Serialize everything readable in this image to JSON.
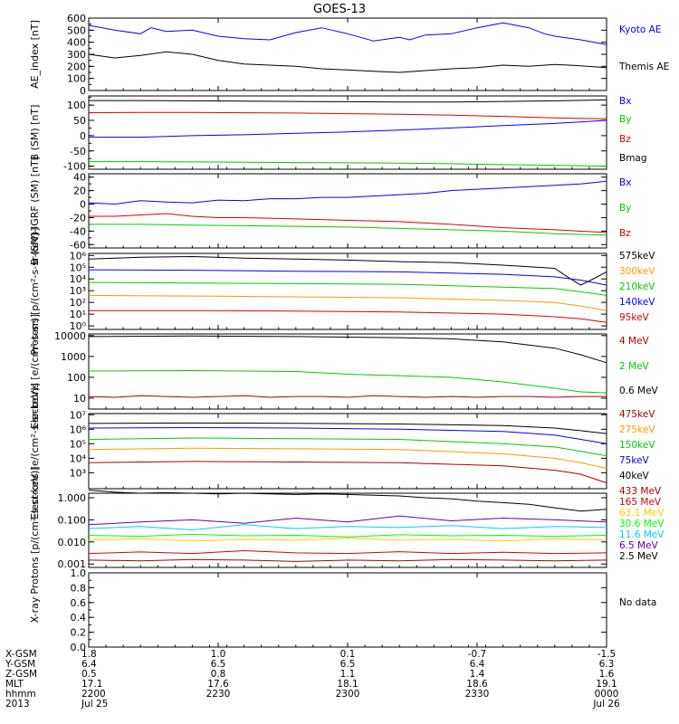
{
  "title": "GOES-13",
  "panels": [
    {
      "ylabel": "AE_index [nT]",
      "yscale": "linear",
      "ylim": [
        0,
        600
      ],
      "ticks": [
        "0",
        "100",
        "200",
        "300",
        "400",
        "500",
        "600"
      ],
      "series": [
        {
          "name": "Kyoto AE",
          "color": "#0000ff",
          "x": [
            0,
            0.05,
            0.1,
            0.12,
            0.15,
            0.2,
            0.25,
            0.3,
            0.35,
            0.4,
            0.45,
            0.5,
            0.55,
            0.6,
            0.62,
            0.65,
            0.7,
            0.75,
            0.8,
            0.85,
            0.88,
            0.9,
            0.95,
            1.0
          ],
          "y": [
            540,
            500,
            470,
            520,
            490,
            500,
            450,
            430,
            420,
            480,
            520,
            470,
            410,
            440,
            420,
            460,
            470,
            520,
            560,
            520,
            470,
            450,
            420,
            380
          ]
        },
        {
          "name": "Themis AE",
          "color": "#000000",
          "x": [
            0,
            0.05,
            0.1,
            0.15,
            0.2,
            0.25,
            0.3,
            0.35,
            0.4,
            0.45,
            0.5,
            0.55,
            0.6,
            0.65,
            0.7,
            0.75,
            0.8,
            0.85,
            0.9,
            0.95,
            1.0
          ],
          "y": [
            300,
            270,
            290,
            320,
            300,
            250,
            220,
            210,
            200,
            180,
            170,
            160,
            150,
            165,
            180,
            190,
            210,
            200,
            215,
            205,
            190
          ]
        }
      ]
    },
    {
      "ylabel": "B (SM) [nT]",
      "yscale": "linear",
      "ylim": [
        -110,
        130
      ],
      "ticks": [
        "-100",
        "-50",
        "0",
        "50",
        "100"
      ],
      "series": [
        {
          "name": "Bx",
          "color": "#0000ff",
          "x": [
            0,
            0.1,
            0.2,
            0.3,
            0.4,
            0.5,
            0.6,
            0.7,
            0.8,
            0.9,
            1.0
          ],
          "y": [
            -5,
            -5,
            0,
            3,
            8,
            12,
            18,
            25,
            33,
            40,
            50
          ]
        },
        {
          "name": "By",
          "color": "#00cc00",
          "x": [
            0,
            0.1,
            0.2,
            0.3,
            0.4,
            0.5,
            0.6,
            0.7,
            0.8,
            0.9,
            1.0
          ],
          "y": [
            -85,
            -85,
            -86,
            -87,
            -88,
            -89,
            -90,
            -92,
            -95,
            -97,
            -100
          ]
        },
        {
          "name": "Bz",
          "color": "#dd0000",
          "x": [
            0,
            0.1,
            0.2,
            0.3,
            0.4,
            0.5,
            0.6,
            0.7,
            0.8,
            0.9,
            1.0
          ],
          "y": [
            75,
            76,
            76,
            75,
            74,
            72,
            70,
            67,
            63,
            58,
            55
          ]
        },
        {
          "name": "Bmag",
          "color": "#000000",
          "x": [
            0,
            0.1,
            0.2,
            0.3,
            0.4,
            0.5,
            0.6,
            0.7,
            0.8,
            0.9,
            1.0
          ],
          "y": [
            115,
            115,
            114,
            113,
            112,
            111,
            110,
            110,
            112,
            114,
            117
          ]
        }
      ]
    },
    {
      "ylabel": "B (SM)-IGRF (SM) [nT]",
      "yscale": "linear",
      "ylim": [
        -65,
        45
      ],
      "ticks": [
        "-60",
        "-40",
        "-20",
        "0",
        "20",
        "40"
      ],
      "series": [
        {
          "name": "Bx",
          "color": "#0000ff",
          "x": [
            0,
            0.05,
            0.1,
            0.15,
            0.2,
            0.25,
            0.3,
            0.35,
            0.4,
            0.45,
            0.5,
            0.55,
            0.6,
            0.65,
            0.7,
            0.75,
            0.8,
            0.85,
            0.9,
            0.95,
            1.0
          ],
          "y": [
            2,
            0,
            5,
            3,
            2,
            6,
            5,
            8,
            8,
            10,
            10,
            12,
            14,
            16,
            20,
            22,
            24,
            26,
            28,
            30,
            34
          ]
        },
        {
          "name": "By",
          "color": "#00cc00",
          "x": [
            0,
            0.1,
            0.2,
            0.3,
            0.4,
            0.5,
            0.6,
            0.7,
            0.8,
            0.9,
            1.0
          ],
          "y": [
            -30,
            -30,
            -31,
            -32,
            -33,
            -34,
            -36,
            -38,
            -40,
            -44,
            -46
          ]
        },
        {
          "name": "Bz",
          "color": "#dd0000",
          "x": [
            0,
            0.05,
            0.1,
            0.15,
            0.2,
            0.25,
            0.3,
            0.4,
            0.5,
            0.6,
            0.7,
            0.8,
            0.9,
            1.0
          ],
          "y": [
            -18,
            -18,
            -16,
            -14,
            -18,
            -20,
            -20,
            -22,
            -24,
            -26,
            -30,
            -35,
            -38,
            -42
          ]
        }
      ]
    },
    {
      "ylabel": "Protons [p/(cm²-s-sr-keV)]",
      "yscale": "log",
      "ylim": [
        0.5,
        1500000
      ],
      "ticks": [
        "10⁰",
        "10¹",
        "10²",
        "10³",
        "10⁴",
        "10⁵",
        "10⁶"
      ],
      "series": [
        {
          "name": "575keV",
          "color": "#000000",
          "x": [
            0,
            0.1,
            0.2,
            0.3,
            0.4,
            0.5,
            0.6,
            0.7,
            0.8,
            0.9,
            0.92,
            0.95,
            0.97,
            1.0
          ],
          "y": [
            500000,
            700000,
            800000,
            600000,
            500000,
            400000,
            300000,
            250000,
            150000,
            80000,
            20000,
            3000,
            8000,
            40000
          ]
        },
        {
          "name": "300keV",
          "color": "#ff9900",
          "x": [
            0,
            0.2,
            0.4,
            0.6,
            0.8,
            0.9,
            0.95,
            1.0
          ],
          "y": [
            400,
            350,
            300,
            250,
            150,
            100,
            50,
            20
          ]
        },
        {
          "name": "210keV",
          "color": "#00cc00",
          "x": [
            0,
            0.2,
            0.4,
            0.6,
            0.8,
            0.9,
            0.95,
            1.0
          ],
          "y": [
            5000,
            4500,
            4000,
            3500,
            2000,
            1500,
            800,
            400
          ]
        },
        {
          "name": "140keV",
          "color": "#0000ff",
          "x": [
            0,
            0.2,
            0.4,
            0.6,
            0.8,
            0.9,
            0.95,
            1.0
          ],
          "y": [
            60000,
            55000,
            45000,
            40000,
            25000,
            15000,
            8000,
            3000
          ]
        },
        {
          "name": "95keV",
          "color": "#dd0000",
          "x": [
            0,
            0.2,
            0.4,
            0.6,
            0.8,
            0.9,
            0.95,
            1.0
          ],
          "y": [
            20,
            20,
            18,
            15,
            10,
            6,
            4,
            2
          ]
        }
      ]
    },
    {
      "ylabel": "Electrons [e/(cm²-s-sr)]",
      "yscale": "log",
      "ylim": [
        3,
        12000
      ],
      "ticks": [
        "10",
        "100",
        "1000",
        "10000"
      ],
      "series": [
        {
          "name": "4 MeV",
          "color": "#aa0000",
          "x": [
            0,
            0.05,
            0.1,
            0.15,
            0.2,
            0.25,
            0.3,
            0.35,
            0.4,
            0.45,
            0.5,
            0.55,
            0.6,
            0.65,
            0.7,
            0.75,
            0.8,
            0.85,
            0.9,
            0.95,
            1.0
          ],
          "y": [
            12,
            11,
            13,
            12,
            11,
            12,
            13,
            11,
            12,
            12,
            11,
            13,
            12,
            11,
            12,
            11,
            12,
            12,
            11,
            12,
            12
          ]
        },
        {
          "name": "2 MeV",
          "color": "#00cc00",
          "x": [
            0,
            0.2,
            0.4,
            0.5,
            0.6,
            0.7,
            0.8,
            0.9,
            0.95,
            1.0
          ],
          "y": [
            200,
            210,
            190,
            140,
            120,
            100,
            60,
            30,
            20,
            18
          ]
        },
        {
          "name": "0.6 MeV",
          "color": "#000000",
          "x": [
            0,
            0.2,
            0.4,
            0.6,
            0.7,
            0.8,
            0.85,
            0.9,
            0.95,
            1.0
          ],
          "y": [
            9000,
            9500,
            9000,
            8000,
            7000,
            5000,
            3500,
            2500,
            1200,
            500
          ]
        }
      ]
    },
    {
      "ylabel": "Electrons [e/(cm²-s-sr-keV)]",
      "yscale": "log",
      "ylim": [
        80,
        12000000
      ],
      "ticks": [
        "10³",
        "10⁴",
        "10⁵",
        "10⁶",
        "10⁷"
      ],
      "series": [
        {
          "name": "475keV",
          "color": "#aa0000",
          "x": [
            0,
            0.2,
            0.4,
            0.6,
            0.8,
            0.9,
            0.95,
            1.0
          ],
          "y": [
            5000,
            6000,
            5500,
            5000,
            3000,
            1500,
            800,
            200
          ]
        },
        {
          "name": "275keV",
          "color": "#ff9900",
          "x": [
            0,
            0.2,
            0.4,
            0.6,
            0.8,
            0.9,
            0.95,
            1.0
          ],
          "y": [
            40000,
            50000,
            45000,
            40000,
            20000,
            10000,
            5000,
            2000
          ]
        },
        {
          "name": "150keV",
          "color": "#00cc00",
          "x": [
            0,
            0.2,
            0.4,
            0.6,
            0.8,
            0.9,
            0.95,
            1.0
          ],
          "y": [
            200000,
            250000,
            220000,
            200000,
            100000,
            60000,
            30000,
            15000
          ]
        },
        {
          "name": "75keV",
          "color": "#0000ff",
          "x": [
            0,
            0.2,
            0.4,
            0.6,
            0.8,
            0.9,
            0.95,
            1.0
          ],
          "y": [
            1200000,
            1300000,
            1200000,
            1000000,
            700000,
            400000,
            200000,
            100000
          ]
        },
        {
          "name": "40keV",
          "color": "#000000",
          "x": [
            0,
            0.2,
            0.4,
            0.6,
            0.8,
            0.9,
            0.95,
            1.0
          ],
          "y": [
            2500000,
            2700000,
            2600000,
            2300000,
            1800000,
            1200000,
            800000,
            500000
          ]
        }
      ]
    },
    {
      "ylabel": "Protons [p/(cm²-s-sr-keV)]",
      "yscale": "log",
      "ylim": [
        0.0007,
        1.6
      ],
      "ticks": [
        "0.001",
        "0.010",
        "0.100",
        "1.000"
      ],
      "series": [
        {
          "name": "433 MeV",
          "color": "#aa0000",
          "x": [
            0,
            0.1,
            0.2,
            0.3,
            0.4,
            0.5,
            0.6,
            0.7,
            0.8,
            0.9,
            1.0
          ],
          "y": [
            0.0015,
            0.0014,
            0.0016,
            0.0015,
            0.0013,
            0.0015,
            0.0014,
            0.0016,
            0.0015,
            0.0014,
            0.0015
          ]
        },
        {
          "name": "165 MeV",
          "color": "#dd0000",
          "x": [
            0,
            0.1,
            0.2,
            0.3,
            0.4,
            0.5,
            0.6,
            0.7,
            0.8,
            0.9,
            1.0
          ],
          "y": [
            0.003,
            0.0035,
            0.003,
            0.004,
            0.0032,
            0.003,
            0.0036,
            0.003,
            0.0034,
            0.003,
            0.0032
          ]
        },
        {
          "name": "63.1 MeV",
          "color": "#ffcc00",
          "x": [
            0,
            0.1,
            0.2,
            0.3,
            0.4,
            0.5,
            0.6,
            0.7,
            0.8,
            0.9,
            1.0
          ],
          "y": [
            0.012,
            0.014,
            0.011,
            0.013,
            0.012,
            0.015,
            0.012,
            0.013,
            0.011,
            0.014,
            0.012
          ]
        },
        {
          "name": "30.6 MeV",
          "color": "#00ff00",
          "x": [
            0,
            0.1,
            0.2,
            0.3,
            0.4,
            0.5,
            0.6,
            0.7,
            0.8,
            0.9,
            1.0
          ],
          "y": [
            0.02,
            0.018,
            0.022,
            0.019,
            0.02,
            0.017,
            0.021,
            0.019,
            0.02,
            0.018,
            0.02
          ]
        },
        {
          "name": "11.6 MeV",
          "color": "#00ccff",
          "x": [
            0,
            0.1,
            0.2,
            0.3,
            0.4,
            0.5,
            0.6,
            0.7,
            0.8,
            0.9,
            1.0
          ],
          "y": [
            0.04,
            0.05,
            0.035,
            0.06,
            0.04,
            0.05,
            0.045,
            0.055,
            0.04,
            0.05,
            0.045
          ]
        },
        {
          "name": "6.5 MeV",
          "color": "#6600aa",
          "x": [
            0,
            0.1,
            0.2,
            0.3,
            0.4,
            0.5,
            0.6,
            0.7,
            0.8,
            0.9,
            1.0
          ],
          "y": [
            0.06,
            0.08,
            0.1,
            0.07,
            0.12,
            0.08,
            0.15,
            0.09,
            0.12,
            0.1,
            0.08
          ]
        },
        {
          "name": "2.5 MeV",
          "color": "#000000",
          "x": [
            0,
            0.05,
            0.1,
            0.15,
            0.2,
            0.25,
            0.3,
            0.35,
            0.4,
            0.45,
            0.5,
            0.55,
            0.6,
            0.65,
            0.7,
            0.75,
            0.8,
            0.85,
            0.9,
            0.95,
            1.0
          ],
          "y": [
            2.2,
            1.8,
            1.6,
            1.7,
            1.6,
            1.5,
            1.6,
            1.5,
            1.4,
            1.5,
            1.4,
            1.3,
            1.2,
            1.0,
            0.9,
            0.7,
            0.6,
            0.5,
            0.35,
            0.25,
            0.3
          ]
        }
      ]
    },
    {
      "ylabel": "X-ray",
      "yscale": "linear",
      "ylim": [
        0,
        1.0
      ],
      "ticks": [
        "0.0",
        "0.2",
        "0.4",
        "0.6",
        "0.8",
        "1.0"
      ],
      "nodata": "No data",
      "series": []
    }
  ],
  "orbit": {
    "rows": [
      {
        "label": "X-GSM",
        "values": [
          "1.8",
          "1.0",
          "0.1",
          "-0.7",
          "-1.5"
        ]
      },
      {
        "label": "Y-GSM",
        "values": [
          "6.4",
          "6.5",
          "6.5",
          "6.4",
          "6.3"
        ]
      },
      {
        "label": "Z-GSM",
        "values": [
          "0.5",
          "0.8",
          "1.1",
          "1.4",
          "1.6"
        ]
      },
      {
        "label": "MLT",
        "values": [
          "17.1",
          "17.6",
          "18.1",
          "18.6",
          "19.1"
        ]
      },
      {
        "label": "hhmm",
        "values": [
          "2200",
          "2230",
          "2300",
          "2330",
          "0000"
        ]
      },
      {
        "label": "2013",
        "values": [
          "Jul 25",
          "",
          "",
          "",
          "Jul 26"
        ]
      }
    ]
  }
}
